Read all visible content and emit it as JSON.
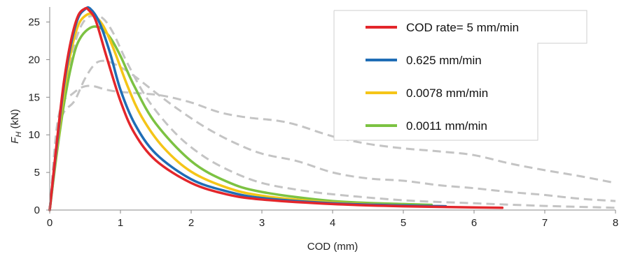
{
  "chart_data": {
    "type": "line",
    "xlabel": "COD (mm)",
    "ylabel_main": "F",
    "ylabel_sub": "H",
    "ylabel_unit": " (kN)",
    "xlim": [
      0,
      8
    ],
    "ylim": [
      0,
      27
    ],
    "xticks": [
      "0",
      "1",
      "2",
      "3",
      "4",
      "5",
      "6",
      "7",
      "8"
    ],
    "yticks": [
      "0",
      "5",
      "10",
      "15",
      "20",
      "25"
    ],
    "grid": false,
    "legend_placement": "top-right",
    "series": [
      {
        "name": "COD rate= 5 mm/min",
        "color": "#e3262b",
        "style": "solid",
        "points": [
          [
            0,
            0
          ],
          [
            0.1,
            9
          ],
          [
            0.2,
            17
          ],
          [
            0.3,
            22.5
          ],
          [
            0.4,
            25.8
          ],
          [
            0.5,
            26.8
          ],
          [
            0.55,
            26.6
          ],
          [
            0.65,
            25.2
          ],
          [
            0.8,
            20.5
          ],
          [
            1.0,
            14.5
          ],
          [
            1.2,
            10.2
          ],
          [
            1.5,
            6.6
          ],
          [
            2.0,
            3.6
          ],
          [
            2.5,
            2.1
          ],
          [
            3.0,
            1.4
          ],
          [
            4.0,
            0.8
          ],
          [
            5.0,
            0.5
          ],
          [
            6.0,
            0.35
          ],
          [
            6.4,
            0.3
          ]
        ]
      },
      {
        "name": "0.625 mm/min",
        "color": "#1f6db6",
        "style": "solid",
        "points": [
          [
            0,
            0
          ],
          [
            0.1,
            8.5
          ],
          [
            0.2,
            16.5
          ],
          [
            0.3,
            22
          ],
          [
            0.4,
            25.5
          ],
          [
            0.5,
            26.7
          ],
          [
            0.57,
            26.8
          ],
          [
            0.7,
            25
          ],
          [
            0.85,
            21
          ],
          [
            1.0,
            16
          ],
          [
            1.2,
            11.5
          ],
          [
            1.5,
            7.5
          ],
          [
            2.0,
            4.1
          ],
          [
            2.5,
            2.5
          ],
          [
            3.0,
            1.6
          ],
          [
            4.0,
            0.9
          ],
          [
            5.0,
            0.6
          ],
          [
            5.6,
            0.5
          ]
        ]
      },
      {
        "name": "0.0078 mm/min",
        "color": "#f5c518",
        "style": "solid",
        "points": [
          [
            0,
            0
          ],
          [
            0.1,
            8
          ],
          [
            0.2,
            15.5
          ],
          [
            0.3,
            21
          ],
          [
            0.4,
            24.5
          ],
          [
            0.5,
            25.8
          ],
          [
            0.6,
            26
          ],
          [
            0.75,
            24.6
          ],
          [
            0.9,
            21.5
          ],
          [
            1.1,
            16.5
          ],
          [
            1.3,
            12.4
          ],
          [
            1.6,
            8.4
          ],
          [
            2.0,
            5.1
          ],
          [
            2.5,
            3.0
          ],
          [
            3.0,
            1.9
          ],
          [
            4.0,
            1.0
          ],
          [
            5.0,
            0.6
          ],
          [
            5.6,
            0.5
          ]
        ]
      },
      {
        "name": "0.0011 mm/min",
        "color": "#7cc242",
        "style": "solid",
        "points": [
          [
            0,
            0
          ],
          [
            0.1,
            7.5
          ],
          [
            0.2,
            14
          ],
          [
            0.3,
            19
          ],
          [
            0.4,
            22.3
          ],
          [
            0.55,
            24.1
          ],
          [
            0.7,
            24.3
          ],
          [
            0.85,
            23
          ],
          [
            1.0,
            20.5
          ],
          [
            1.2,
            16.4
          ],
          [
            1.5,
            11.5
          ],
          [
            2.0,
            6.5
          ],
          [
            2.5,
            3.8
          ],
          [
            3.0,
            2.4
          ],
          [
            4.0,
            1.2
          ],
          [
            5.0,
            0.8
          ],
          [
            5.4,
            0.7
          ]
        ]
      },
      {
        "name": "",
        "color": "#c4c4c4",
        "style": "dashed",
        "points": [
          [
            0,
            0
          ],
          [
            0.1,
            11
          ],
          [
            0.2,
            14.5
          ],
          [
            0.3,
            15.3
          ],
          [
            0.45,
            16.3
          ],
          [
            0.6,
            16.5
          ],
          [
            0.8,
            16
          ],
          [
            1.0,
            15.7
          ],
          [
            1.3,
            15.5
          ],
          [
            1.6,
            15.2
          ],
          [
            2.0,
            14.3
          ],
          [
            2.4,
            13
          ],
          [
            2.8,
            12.3
          ],
          [
            3.2,
            11.9
          ],
          [
            3.5,
            11.3
          ],
          [
            4.0,
            9.8
          ],
          [
            4.5,
            8.8
          ],
          [
            5.0,
            8.2
          ],
          [
            5.5,
            7.8
          ],
          [
            6.0,
            7.3
          ],
          [
            6.5,
            6.2
          ],
          [
            7.0,
            5.3
          ],
          [
            7.5,
            4.5
          ],
          [
            8.0,
            3.6
          ]
        ]
      },
      {
        "name": "",
        "color": "#c4c4c4",
        "style": "dashed",
        "points": [
          [
            0,
            0
          ],
          [
            0.1,
            10
          ],
          [
            0.2,
            13
          ],
          [
            0.35,
            14.5
          ],
          [
            0.5,
            17.5
          ],
          [
            0.65,
            19.5
          ],
          [
            0.8,
            19.8
          ],
          [
            1.0,
            19
          ],
          [
            1.2,
            17.8
          ],
          [
            1.5,
            15.6
          ],
          [
            1.8,
            13.5
          ],
          [
            2.2,
            11
          ],
          [
            2.6,
            9
          ],
          [
            3.0,
            7.5
          ],
          [
            3.5,
            6.5
          ],
          [
            4.0,
            5
          ],
          [
            4.5,
            4.2
          ],
          [
            5.0,
            3.9
          ],
          [
            5.5,
            3.3
          ],
          [
            6.0,
            2.9
          ],
          [
            6.5,
            2.4
          ],
          [
            7.0,
            2.0
          ],
          [
            7.5,
            1.5
          ],
          [
            8.0,
            1.2
          ]
        ]
      },
      {
        "name": "",
        "color": "#c4c4c4",
        "style": "dashed",
        "points": [
          [
            0,
            0
          ],
          [
            0.1,
            9
          ],
          [
            0.2,
            15
          ],
          [
            0.3,
            20
          ],
          [
            0.4,
            23.5
          ],
          [
            0.5,
            25.3
          ],
          [
            0.6,
            25.8
          ],
          [
            0.75,
            25.5
          ],
          [
            0.9,
            23.5
          ],
          [
            1.1,
            19.5
          ],
          [
            1.4,
            14.5
          ],
          [
            1.8,
            10
          ],
          [
            2.2,
            7
          ],
          [
            2.6,
            5
          ],
          [
            3.0,
            3.6
          ],
          [
            3.5,
            2.7
          ],
          [
            4.0,
            2.1
          ],
          [
            5.0,
            1.3
          ],
          [
            6.0,
            0.9
          ],
          [
            7.0,
            0.55
          ],
          [
            8.0,
            0.3
          ]
        ]
      }
    ]
  }
}
